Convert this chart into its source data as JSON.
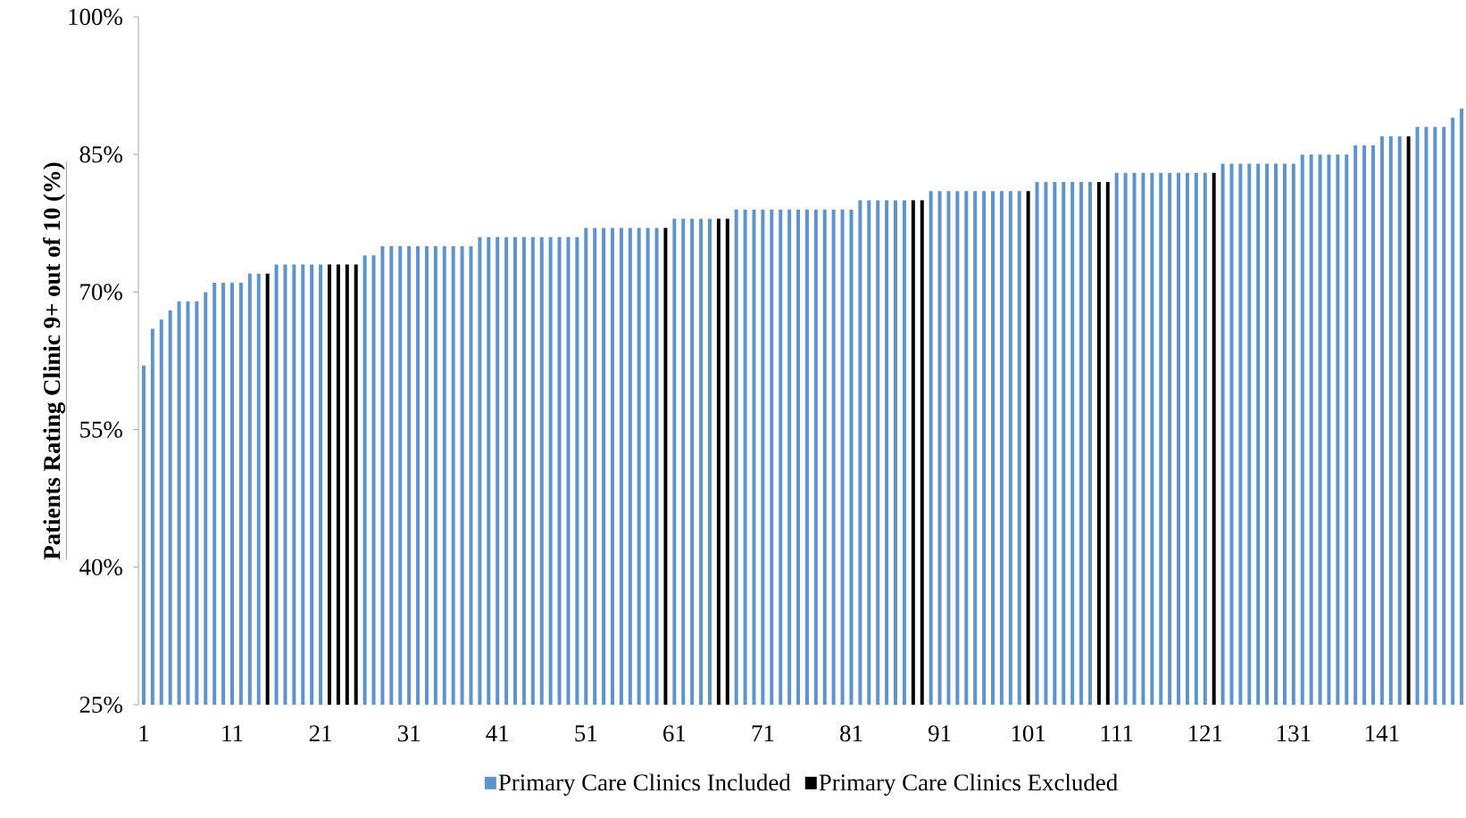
{
  "chart_data": {
    "type": "bar",
    "ylabel": "Patients Rating Clinic 9+ out of 10 (%)",
    "categories": [
      "1",
      null,
      null,
      null,
      null,
      null,
      null,
      null,
      null,
      null,
      "11",
      null,
      null,
      null,
      null,
      null,
      null,
      null,
      null,
      null,
      "21",
      null,
      null,
      null,
      null,
      null,
      null,
      null,
      null,
      null,
      "31",
      null,
      null,
      null,
      null,
      null,
      null,
      null,
      null,
      null,
      "41",
      null,
      null,
      null,
      null,
      null,
      null,
      null,
      null,
      null,
      "51",
      null,
      null,
      null,
      null,
      null,
      null,
      null,
      null,
      null,
      "61",
      null,
      null,
      null,
      null,
      null,
      null,
      null,
      null,
      null,
      "71",
      null,
      null,
      null,
      null,
      null,
      null,
      null,
      null,
      null,
      "81",
      null,
      null,
      null,
      null,
      null,
      null,
      null,
      null,
      null,
      "91",
      null,
      null,
      null,
      null,
      null,
      null,
      null,
      null,
      null,
      "101",
      null,
      null,
      null,
      null,
      null,
      null,
      null,
      null,
      null,
      "111",
      null,
      null,
      null,
      null,
      null,
      null,
      null,
      null,
      null,
      "121",
      null,
      null,
      null,
      null,
      null,
      null,
      null,
      null,
      null,
      "131",
      null,
      null,
      null,
      null,
      null,
      null,
      null,
      null,
      null,
      "141",
      null,
      null,
      null,
      null,
      null,
      null,
      null,
      null,
      null
    ],
    "series": [
      {
        "name": "Primary Care Clinics Included",
        "color": "#5e94cc",
        "values": [
          62,
          66,
          67,
          68,
          69,
          69,
          69,
          70,
          71,
          71,
          71,
          71,
          72,
          72,
          null,
          73,
          73,
          73,
          73,
          73,
          73,
          null,
          null,
          null,
          null,
          74,
          74,
          75,
          75,
          75,
          75,
          75,
          75,
          75,
          75,
          75,
          75,
          75,
          76,
          76,
          76,
          76,
          76,
          76,
          76,
          76,
          76,
          76,
          76,
          76,
          77,
          77,
          77,
          77,
          77,
          77,
          77,
          77,
          77,
          null,
          78,
          78,
          78,
          78,
          78,
          null,
          null,
          79,
          79,
          79,
          79,
          79,
          79,
          79,
          79,
          79,
          79,
          79,
          79,
          79,
          79,
          80,
          80,
          80,
          80,
          80,
          80,
          null,
          null,
          81,
          81,
          81,
          81,
          81,
          81,
          81,
          81,
          81,
          81,
          81,
          null,
          82,
          82,
          82,
          82,
          82,
          82,
          82,
          null,
          null,
          83,
          83,
          83,
          83,
          83,
          83,
          83,
          83,
          83,
          83,
          83,
          null,
          84,
          84,
          84,
          84,
          84,
          84,
          84,
          84,
          84,
          85,
          85,
          85,
          85,
          85,
          85,
          86,
          86,
          86,
          87,
          87,
          87,
          null,
          88,
          88,
          88,
          88,
          89,
          90
        ]
      },
      {
        "name": "Primary Care Clinics Excluded",
        "color": "#000000",
        "values": [
          null,
          null,
          null,
          null,
          null,
          null,
          null,
          null,
          null,
          null,
          null,
          null,
          null,
          null,
          72,
          null,
          null,
          null,
          null,
          null,
          null,
          73,
          73,
          73,
          73,
          null,
          null,
          null,
          null,
          null,
          null,
          null,
          null,
          null,
          null,
          null,
          null,
          null,
          null,
          null,
          null,
          null,
          null,
          null,
          null,
          null,
          null,
          null,
          null,
          null,
          null,
          null,
          null,
          null,
          null,
          null,
          null,
          null,
          null,
          77,
          null,
          null,
          null,
          null,
          null,
          78,
          78,
          null,
          null,
          null,
          null,
          null,
          null,
          null,
          null,
          null,
          null,
          null,
          null,
          null,
          null,
          null,
          null,
          null,
          null,
          null,
          null,
          80,
          80,
          null,
          null,
          null,
          null,
          null,
          null,
          null,
          null,
          null,
          null,
          null,
          81,
          null,
          null,
          null,
          null,
          null,
          null,
          null,
          82,
          82,
          null,
          null,
          null,
          null,
          null,
          null,
          null,
          null,
          null,
          null,
          null,
          83,
          null,
          null,
          null,
          null,
          null,
          null,
          null,
          null,
          null,
          null,
          null,
          null,
          null,
          null,
          null,
          null,
          null,
          null,
          null,
          null,
          null,
          87,
          null,
          null,
          null,
          null,
          null,
          null
        ]
      }
    ],
    "ylim": [
      25,
      100
    ],
    "yticks": [
      {
        "value": 25,
        "label": "25%"
      },
      {
        "value": 40,
        "label": "40%"
      },
      {
        "value": 55,
        "label": "55%"
      },
      {
        "value": 70,
        "label": "70%"
      },
      {
        "value": 85,
        "label": "85%"
      },
      {
        "value": 100,
        "label": "100%"
      }
    ],
    "grid": false,
    "legend": "bottom"
  }
}
